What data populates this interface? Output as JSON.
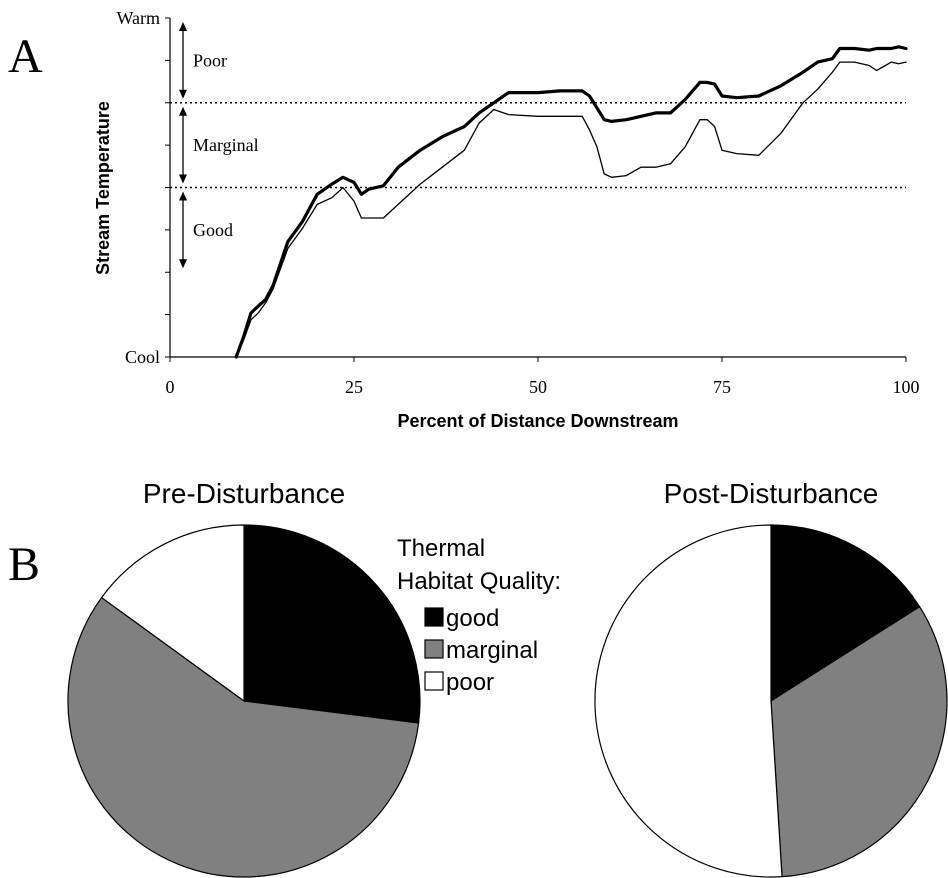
{
  "panels": {
    "a": "A",
    "b": "B"
  },
  "chart_data": [
    {
      "type": "line",
      "xlabel": "Percent of Distance Downstream",
      "ylabel": "Stream Temperature",
      "xlim": [
        0,
        100
      ],
      "x_ticks": [
        0,
        25,
        50,
        75,
        100
      ],
      "ylim": [
        0,
        100
      ],
      "y_level_labels": {
        "bottom": "Cool",
        "top": "Warm"
      },
      "thresholds": [
        50,
        75
      ],
      "zones": [
        {
          "label": "Poor",
          "from": 75,
          "to": 100
        },
        {
          "label": "Marginal",
          "from": 50,
          "to": 75
        },
        {
          "label": "Good",
          "from": 25,
          "to": 50
        }
      ],
      "series": [
        {
          "style": "thick",
          "x": [
            9,
            10,
            11,
            12,
            13,
            14,
            16,
            18,
            20,
            22,
            23.5,
            25,
            26,
            27,
            29,
            31,
            34,
            37,
            40,
            42,
            44,
            46,
            50,
            53,
            56,
            57,
            58,
            59,
            60,
            62,
            64,
            66,
            68,
            70,
            72,
            73,
            74,
            75,
            77,
            80,
            83,
            86,
            88,
            90,
            91,
            93,
            95,
            96,
            98,
            99,
            100
          ],
          "y": [
            0,
            6,
            13,
            15,
            17,
            21,
            34,
            40,
            48,
            51,
            53,
            51.5,
            48,
            49.5,
            50.5,
            56,
            61,
            65,
            68,
            72,
            75,
            78,
            78,
            78.5,
            78.5,
            77,
            73.5,
            70,
            69.5,
            70,
            71,
            72,
            72,
            76,
            81,
            81,
            80.5,
            77,
            76.5,
            77,
            80,
            84,
            87,
            88,
            91,
            91,
            90.5,
            91,
            91,
            91.5,
            91
          ]
        },
        {
          "style": "thin",
          "x": [
            9,
            10,
            11,
            12,
            13,
            14,
            16,
            18,
            20,
            22,
            23.5,
            25,
            26,
            27,
            29,
            31,
            34,
            37,
            40,
            42,
            44,
            46,
            50,
            53,
            56,
            57,
            58,
            59,
            60,
            62,
            64,
            66,
            68,
            70,
            72,
            73,
            74,
            75,
            77,
            80,
            83,
            86,
            88,
            90,
            91,
            93,
            95,
            96,
            98,
            99,
            100
          ],
          "y": [
            0,
            5,
            11,
            13,
            16,
            20,
            32,
            38,
            45,
            47,
            50,
            46,
            41,
            41,
            41,
            45,
            51,
            56,
            61,
            69,
            73,
            71.5,
            71,
            71,
            71,
            67,
            62,
            54,
            53,
            53.5,
            56,
            56,
            57,
            62,
            70,
            70,
            68,
            61,
            60,
            59.5,
            66,
            75,
            79,
            84,
            87,
            87,
            86,
            84.5,
            87,
            86.5,
            87
          ]
        }
      ]
    },
    {
      "type": "pie",
      "title": "Pre-Disturbance",
      "labels": [
        "good",
        "marginal",
        "poor"
      ],
      "values": [
        27,
        58,
        15
      ],
      "colors": [
        "#000000",
        "#808080",
        "#ffffff"
      ]
    },
    {
      "type": "pie",
      "title": "Post-Disturbance",
      "labels": [
        "good",
        "marginal",
        "poor"
      ],
      "values": [
        16,
        33,
        51
      ],
      "colors": [
        "#000000",
        "#808080",
        "#ffffff"
      ]
    }
  ],
  "legend": {
    "title_line1": "Thermal",
    "title_line2": "Habitat Quality:",
    "items": [
      {
        "label": "good",
        "color": "#000000"
      },
      {
        "label": "marginal",
        "color": "#808080"
      },
      {
        "label": "poor",
        "color": "#ffffff"
      }
    ]
  }
}
